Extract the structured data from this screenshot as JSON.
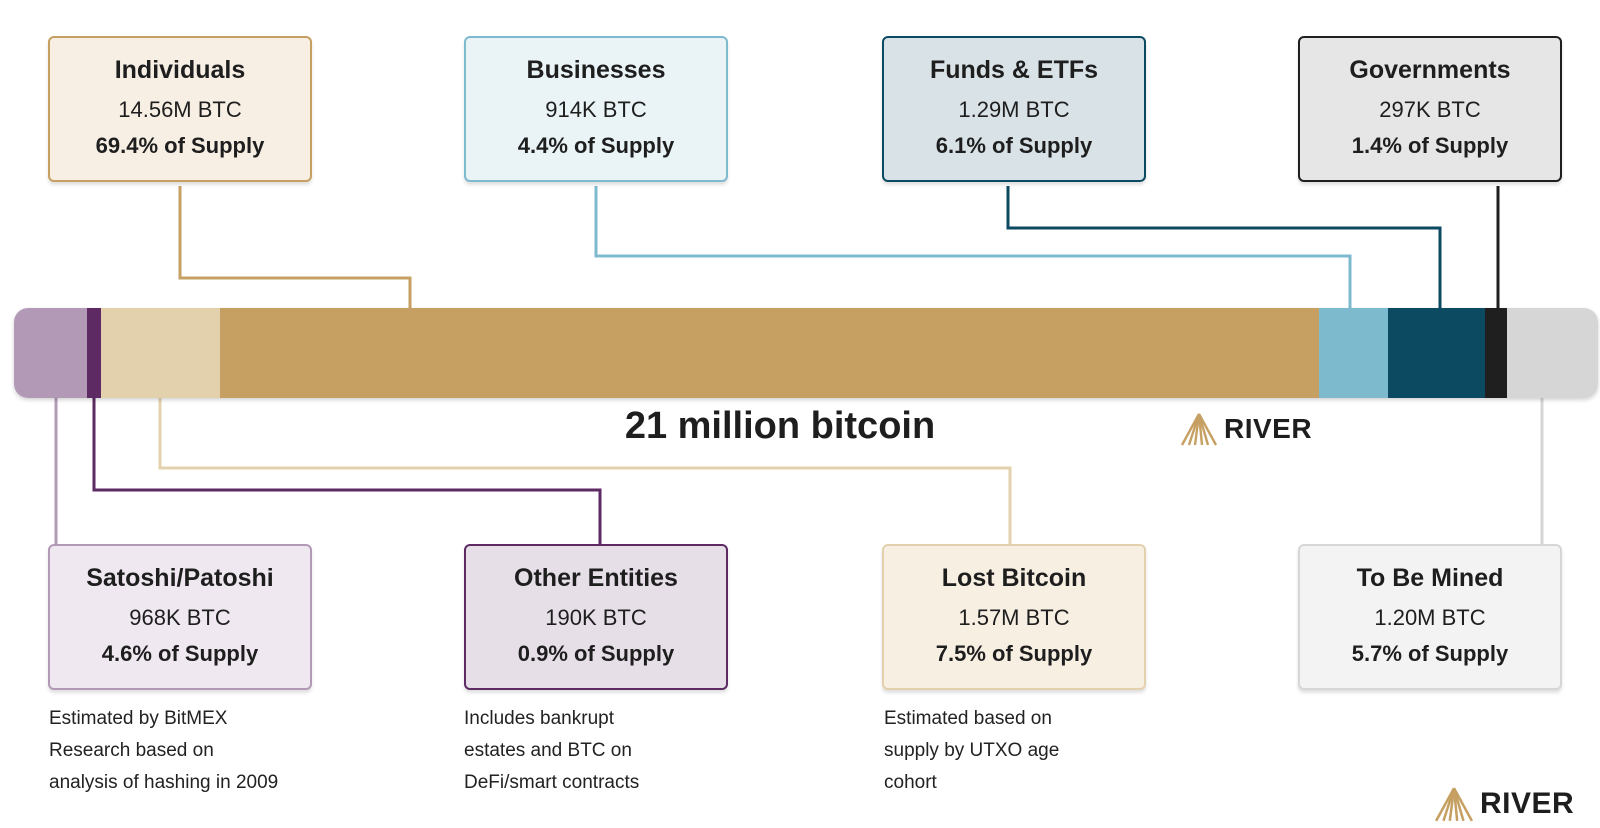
{
  "chart_data": {
    "type": "bar",
    "title": "21 million bitcoin",
    "unit": "BTC",
    "segments": [
      {
        "name": "Satoshi/Patoshi",
        "btc": "968K BTC",
        "value": 968000,
        "pct_label": "4.6% of Supply",
        "pct": 4.6,
        "color": "#b29ab7",
        "note": "Estimated by BitMEX Research based on analysis of hashing in 2009"
      },
      {
        "name": "Other Entities",
        "btc": "190K BTC",
        "value": 190000,
        "pct_label": "0.9% of Supply",
        "pct": 0.9,
        "color": "#5d2a63",
        "note": "Includes bankrupt estates and BTC on DeFi/smart contracts"
      },
      {
        "name": "Lost Bitcoin",
        "btc": "1.57M BTC",
        "value": 1570000,
        "pct_label": "7.5% of Supply",
        "pct": 7.5,
        "color": "#e3d1ae",
        "note": "Estimated based on supply by UTXO age cohort"
      },
      {
        "name": "Individuals",
        "btc": "14.56M BTC",
        "value": 14560000,
        "pct_label": "69.4% of Supply",
        "pct": 69.4,
        "color": "#c6a062",
        "note": ""
      },
      {
        "name": "Businesses",
        "btc": "914K BTC",
        "value": 914000,
        "pct_label": "4.4% of Supply",
        "pct": 4.4,
        "color": "#7ebacd",
        "note": ""
      },
      {
        "name": "Funds & ETFs",
        "btc": "1.29M BTC",
        "value": 1290000,
        "pct_label": "6.1% of Supply",
        "pct": 6.1,
        "color": "#0b4a61",
        "note": ""
      },
      {
        "name": "Governments",
        "btc": "297K BTC",
        "value": 297000,
        "pct_label": "1.4% of Supply",
        "pct": 1.4,
        "color": "#1f1f1f",
        "note": ""
      },
      {
        "name": "To Be Mined",
        "btc": "1.20M BTC",
        "value": 1200000,
        "pct_label": "5.7% of Supply",
        "pct": 5.7,
        "color": "#d6d6d6",
        "note": ""
      }
    ]
  },
  "brand": {
    "name": "RIVER",
    "color": "#c6a062"
  },
  "boxes": {
    "individuals": {
      "name": "Individuals",
      "btc": "14.56M BTC",
      "pct": "69.4% of Supply"
    },
    "businesses": {
      "name": "Businesses",
      "btc": "914K BTC",
      "pct": "4.4% of Supply"
    },
    "funds": {
      "name": "Funds & ETFs",
      "btc": "1.29M BTC",
      "pct": "6.1% of Supply"
    },
    "governments": {
      "name": "Governments",
      "btc": "297K BTC",
      "pct": "1.4% of Supply"
    },
    "satoshi": {
      "name": "Satoshi/Patoshi",
      "btc": "968K BTC",
      "pct": "4.6% of Supply"
    },
    "other": {
      "name": "Other Entities",
      "btc": "190K BTC",
      "pct": "0.9% of Supply"
    },
    "lost": {
      "name": "Lost Bitcoin",
      "btc": "1.57M BTC",
      "pct": "7.5% of Supply"
    },
    "mined": {
      "name": "To Be Mined",
      "btc": "1.20M BTC",
      "pct": "5.7% of Supply"
    }
  },
  "notes": {
    "satoshi": [
      "Estimated by BitMEX",
      "Research based on",
      "analysis of hashing in 2009"
    ],
    "other": [
      "Includes bankrupt",
      "estates and BTC on",
      "DeFi/smart contracts"
    ],
    "lost": [
      "Estimated based on",
      "supply by UTXO age",
      "cohort"
    ]
  }
}
